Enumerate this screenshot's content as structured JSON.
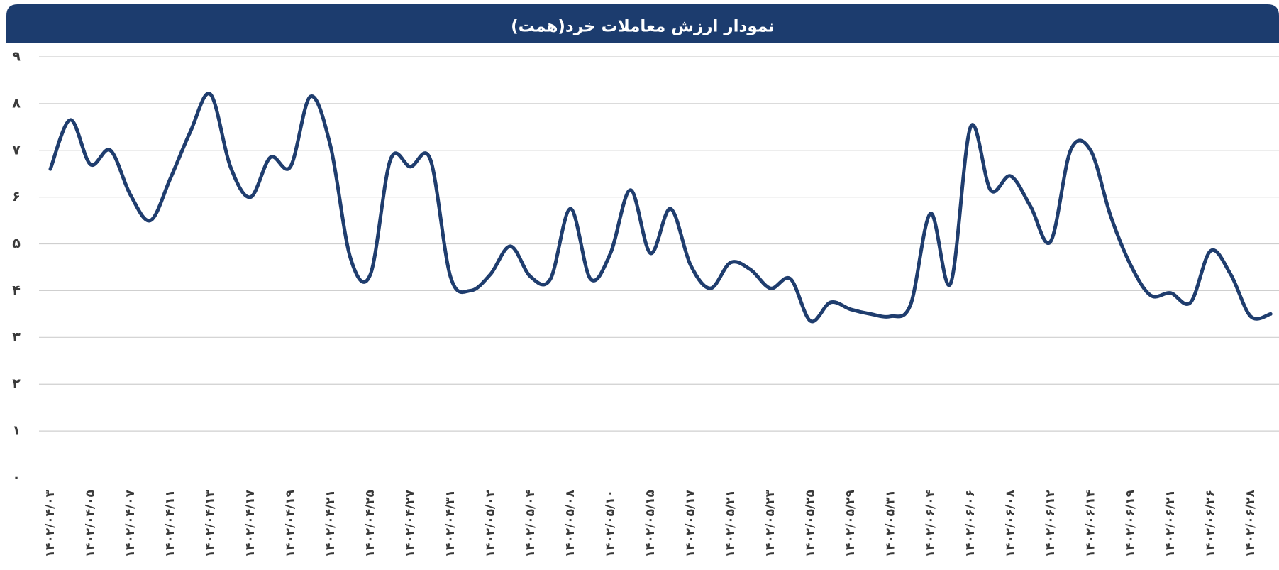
{
  "chart_data": {
    "type": "line",
    "title": "نمودار ارزش معاملات خرد(همت)",
    "categories": [
      "۱۴۰۲/۰۴/۰۳",
      null,
      "۱۴۰۲/۰۴/۰۵",
      null,
      "۱۴۰۲/۰۴/۰۷",
      null,
      "۱۴۰۲/۰۴/۱۱",
      null,
      "۱۴۰۲/۰۴/۱۳",
      null,
      "۱۴۰۲/۰۴/۱۷",
      null,
      "۱۴۰۲/۰۴/۱۹",
      null,
      "۱۴۰۲/۰۴/۲۱",
      null,
      "۱۴۰۲/۰۴/۲۵",
      null,
      "۱۴۰۲/۰۴/۲۷",
      null,
      "۱۴۰۲/۰۴/۳۱",
      null,
      "۱۴۰۲/۰۵/۰۲",
      null,
      "۱۴۰۲/۰۵/۰۴",
      null,
      "۱۴۰۲/۰۵/۰۸",
      null,
      "۱۴۰۲/۰۵/۱۰",
      null,
      "۱۴۰۲/۰۵/۱۵",
      null,
      "۱۴۰۲/۰۵/۱۷",
      null,
      "۱۴۰۲/۰۵/۲۱",
      null,
      "۱۴۰۲/۰۵/۲۳",
      null,
      "۱۴۰۲/۰۵/۲۵",
      null,
      "۱۴۰۲/۰۵/۲۹",
      null,
      "۱۴۰۲/۰۵/۳۱",
      null,
      "۱۴۰۲/۰۶/۰۴",
      null,
      "۱۴۰۲/۰۶/۰۶",
      null,
      "۱۴۰۲/۰۶/۰۸",
      null,
      "۱۴۰۲/۰۶/۱۲",
      null,
      "۱۴۰۲/۰۶/۱۴",
      null,
      "۱۴۰۲/۰۶/۱۹",
      null,
      "۱۴۰۲/۰۶/۲۱",
      null,
      "۱۴۰۲/۰۶/۲۶",
      null,
      "۱۴۰۲/۰۶/۲۸",
      null
    ],
    "values": [
      6.6,
      7.65,
      6.7,
      7.0,
      6.05,
      5.5,
      6.4,
      7.4,
      8.2,
      6.65,
      6.0,
      6.85,
      6.65,
      8.15,
      7.1,
      4.7,
      4.35,
      6.8,
      6.65,
      6.8,
      4.3,
      4.0,
      4.35,
      4.95,
      4.3,
      4.25,
      5.75,
      4.25,
      4.8,
      6.15,
      4.8,
      5.75,
      4.55,
      4.05,
      4.6,
      4.45,
      4.05,
      4.25,
      3.35,
      3.75,
      3.6,
      3.5,
      3.45,
      3.7,
      5.65,
      4.15,
      7.5,
      6.15,
      6.45,
      5.8,
      5.05,
      7.0,
      7.0,
      5.6,
      4.55,
      3.9,
      3.95,
      3.75,
      4.85,
      4.35,
      3.45,
      3.5
    ],
    "color": "#1f3d6e",
    "ylim": [
      0,
      9
    ],
    "yticks": [
      {
        "value": 0,
        "label": "۰"
      },
      {
        "value": 1,
        "label": "۱"
      },
      {
        "value": 2,
        "label": "۲"
      },
      {
        "value": 3,
        "label": "۳"
      },
      {
        "value": 4,
        "label": "۴"
      },
      {
        "value": 5,
        "label": "۵"
      },
      {
        "value": 6,
        "label": "۶"
      },
      {
        "value": 7,
        "label": "۷"
      },
      {
        "value": 8,
        "label": "۸"
      },
      {
        "value": 9,
        "label": "۹"
      }
    ],
    "grid": true
  }
}
